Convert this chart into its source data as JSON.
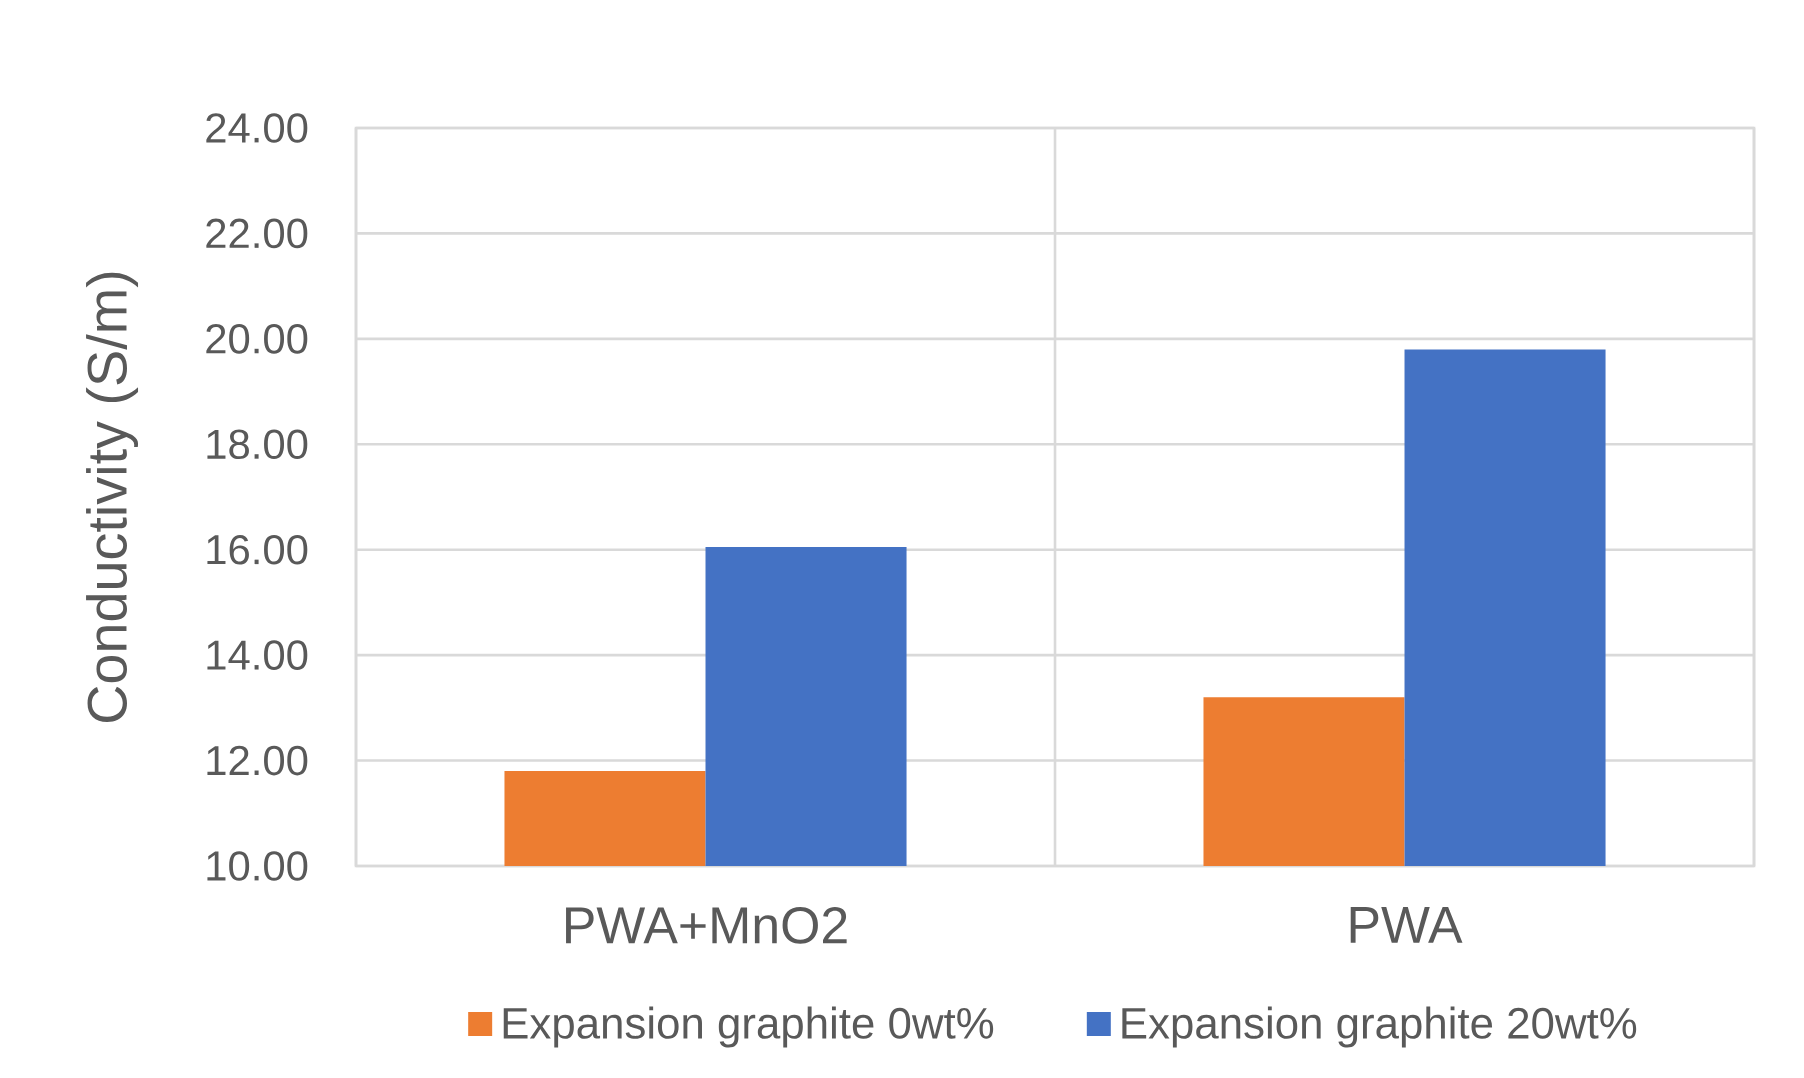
{
  "chart_data": {
    "type": "bar",
    "ylabel": "Conductivity  (S/m)",
    "categories": [
      "PWA+MnO2",
      "PWA"
    ],
    "series": [
      {
        "name": "Expansion graphite  0wt%",
        "color": "#ed7d31",
        "values": [
          11.8,
          13.2
        ]
      },
      {
        "name": "Expansion graphite  20wt%",
        "color": "#4472c4",
        "values": [
          16.05,
          19.8
        ]
      }
    ],
    "ylim": [
      10,
      24
    ],
    "yticks": [
      {
        "value": 10,
        "label": "10.00"
      },
      {
        "value": 12,
        "label": "12.00"
      },
      {
        "value": 14,
        "label": "14.00"
      },
      {
        "value": 16,
        "label": "16.00"
      },
      {
        "value": 18,
        "label": "18.00"
      },
      {
        "value": 20,
        "label": "20.00"
      },
      {
        "value": 22,
        "label": "22.00"
      },
      {
        "value": 24,
        "label": "24.00"
      }
    ],
    "grid": true,
    "legend": "bottom"
  }
}
